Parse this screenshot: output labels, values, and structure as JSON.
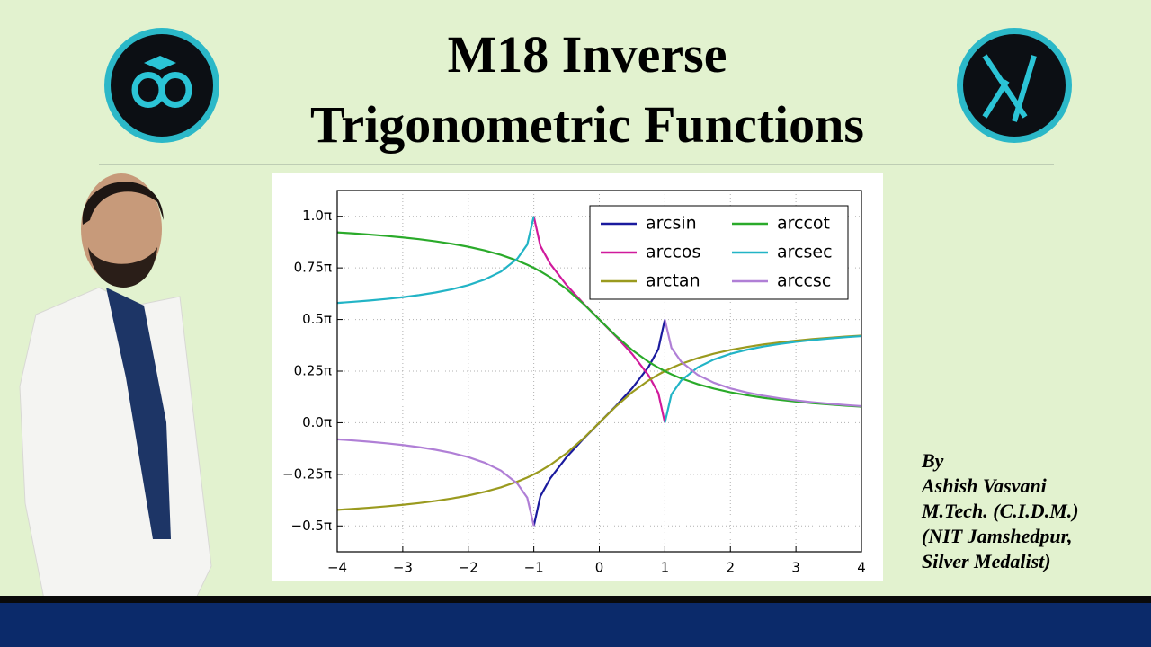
{
  "header": {
    "title_lines": [
      "M18 Inverse",
      "Trigonometric Functions"
    ]
  },
  "author": {
    "lines": [
      "By",
      "Ashish Vasvani",
      "M.Tech. (C.I.D.M.)",
      "(NIT Jamshedpur,",
      "Silver Medalist)"
    ]
  },
  "chart_data": {
    "type": "line",
    "x": [
      -4,
      -3.75,
      -3.5,
      -3.25,
      -3,
      -2.75,
      -2.5,
      -2.25,
      -2,
      -1.75,
      -1.5,
      -1.25,
      -1.1,
      -1,
      -0.9,
      -0.75,
      -0.5,
      -0.25,
      0,
      0.25,
      0.5,
      0.75,
      0.9,
      1,
      1.1,
      1.25,
      1.5,
      1.75,
      2,
      2.25,
      2.5,
      2.75,
      3,
      3.25,
      3.5,
      3.75,
      4
    ],
    "series": [
      {
        "name": "arcsin",
        "color": "#1a1a9e",
        "values": [
          null,
          null,
          null,
          null,
          null,
          null,
          null,
          null,
          null,
          null,
          null,
          null,
          null,
          -0.5,
          -0.3564,
          -0.2699,
          -0.1667,
          -0.0804,
          0,
          0.0804,
          0.1667,
          0.2699,
          0.3564,
          0.5,
          null,
          null,
          null,
          null,
          null,
          null,
          null,
          null,
          null,
          null,
          null,
          null,
          null
        ]
      },
      {
        "name": "arccos",
        "color": "#d01a9c",
        "values": [
          null,
          null,
          null,
          null,
          null,
          null,
          null,
          null,
          null,
          null,
          null,
          null,
          null,
          1,
          0.8564,
          0.7699,
          0.6667,
          0.5804,
          0.5,
          0.4196,
          0.3333,
          0.2301,
          0.1436,
          0,
          null,
          null,
          null,
          null,
          null,
          null,
          null,
          null,
          null,
          null,
          null,
          null,
          null
        ]
      },
      {
        "name": "arctan",
        "color": "#9a9a1e",
        "values": [
          -0.422,
          -0.417,
          -0.4114,
          -0.405,
          -0.3976,
          -0.389,
          -0.3789,
          -0.3669,
          -0.3524,
          -0.3348,
          -0.3128,
          -0.2852,
          -0.2651,
          -0.25,
          -0.2333,
          -0.2048,
          -0.1476,
          -0.078,
          0,
          0.078,
          0.1476,
          0.2048,
          0.2333,
          0.25,
          0.2651,
          0.2852,
          0.3128,
          0.3348,
          0.3524,
          0.3669,
          0.3789,
          0.389,
          0.3976,
          0.405,
          0.4114,
          0.417,
          0.422
        ]
      },
      {
        "name": "arccot",
        "color": "#2aaa2a",
        "values": [
          0.922,
          0.917,
          0.9114,
          0.905,
          0.8976,
          0.889,
          0.8789,
          0.8669,
          0.8524,
          0.8348,
          0.8128,
          0.7852,
          0.7651,
          0.75,
          0.7333,
          0.7048,
          0.6476,
          0.578,
          0.5,
          0.422,
          0.3524,
          0.2952,
          0.2667,
          0.25,
          0.2349,
          0.2148,
          0.1872,
          0.1652,
          0.1476,
          0.1331,
          0.1211,
          0.111,
          0.1024,
          0.095,
          0.0886,
          0.083,
          0.078
        ]
      },
      {
        "name": "arcsec",
        "color": "#22b4c6",
        "values": [
          0.5804,
          0.5859,
          0.5922,
          0.5996,
          0.6082,
          0.6185,
          0.631,
          0.6466,
          0.6667,
          0.6936,
          0.7323,
          0.7952,
          0.8632,
          1,
          null,
          null,
          null,
          null,
          null,
          null,
          null,
          null,
          null,
          0,
          0.1368,
          0.2048,
          0.2677,
          0.3064,
          0.3333,
          0.3534,
          0.369,
          0.3815,
          0.3918,
          0.4004,
          0.4078,
          0.4141,
          0.4196
        ]
      },
      {
        "name": "arccsc",
        "color": "#b07fd6",
        "values": [
          -0.0804,
          -0.0859,
          -0.0922,
          -0.0996,
          -0.1082,
          -0.1185,
          -0.131,
          -0.1466,
          -0.1667,
          -0.1936,
          -0.2323,
          -0.2952,
          -0.3632,
          -0.5,
          null,
          null,
          null,
          null,
          null,
          null,
          null,
          null,
          null,
          0.5,
          0.3632,
          0.2952,
          0.2323,
          0.1936,
          0.1667,
          0.1466,
          0.131,
          0.1185,
          0.1082,
          0.0996,
          0.0922,
          0.0859,
          0.0804
        ]
      }
    ],
    "xlim": [
      -4,
      4
    ],
    "xticks": [
      {
        "value": -4,
        "label": "−4"
      },
      {
        "value": -3,
        "label": "−3"
      },
      {
        "value": -2,
        "label": "−2"
      },
      {
        "value": -1,
        "label": "−1"
      },
      0,
      1,
      2,
      3,
      4
    ],
    "ylim": [
      -0.625,
      1.125
    ],
    "yticks": [
      {
        "value": -0.5,
        "label": "−0.5π"
      },
      {
        "value": -0.25,
        "label": "−0.25π"
      },
      {
        "value": 0,
        "label": "0.0π"
      },
      {
        "value": 0.25,
        "label": "0.25π"
      },
      {
        "value": 0.5,
        "label": "0.5π"
      },
      {
        "value": 0.75,
        "label": "0.75π"
      },
      {
        "value": 1,
        "label": "1.0π"
      }
    ],
    "grid": true,
    "legend": "upper right"
  }
}
